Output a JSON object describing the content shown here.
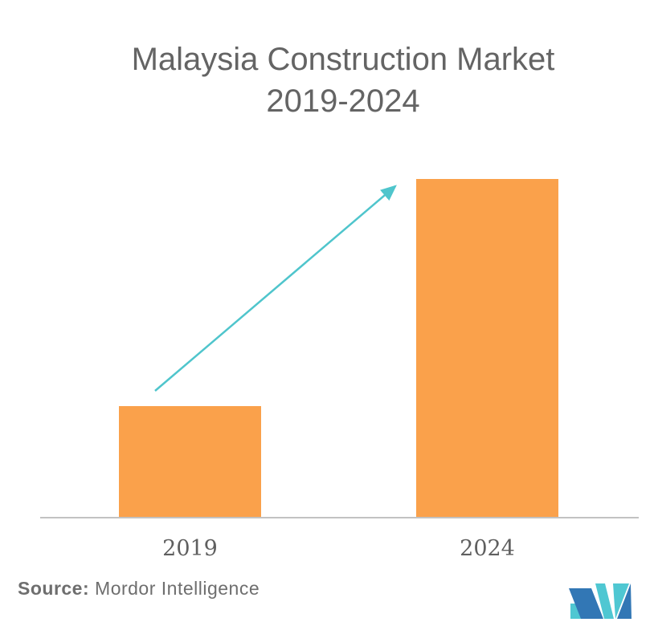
{
  "title": {
    "line1": "Malaysia Construction Market",
    "line2": "2019-2024"
  },
  "source": {
    "label": "Source:",
    "text": "Mordor Intelligence"
  },
  "logo": {
    "name": "mordor-intelligence-logo",
    "blue": "#3277B5",
    "teal": "#4FC7D2"
  },
  "colors": {
    "background": "#FFFFFF",
    "bar": "#FAA14B",
    "arrow": "#4FC5CC",
    "title_text": "#646464",
    "label_text": "#5F5F5F",
    "source_text": "#6E6E6E",
    "axis_line": "#C2C2C2"
  },
  "chart_data": {
    "type": "bar",
    "title": "Malaysia Construction Market 2019-2024",
    "categories": [
      "2019",
      "2024"
    ],
    "values": [
      139,
      422
    ],
    "value_units": "relative bar height in px (no value axis or data labels shown)",
    "xlabel": "",
    "ylabel": "",
    "grid": false,
    "legend": false,
    "annotations": [
      "teal upward trend arrow pointing from the top of the 2019 bar to the top of the 2024 bar"
    ]
  }
}
